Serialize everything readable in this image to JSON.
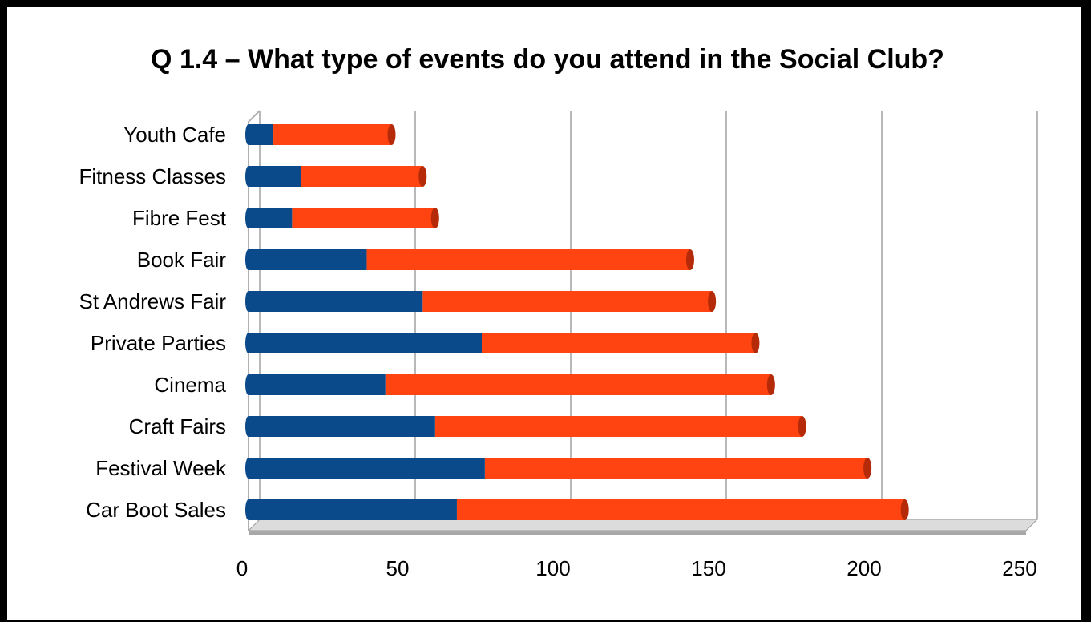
{
  "chart_data": {
    "type": "bar",
    "orientation": "horizontal",
    "stacked": true,
    "title": "Q 1.4 – What type of events do you attend in the Social Club?",
    "categories": [
      "Youth Cafe",
      "Fitness Classes",
      "Fibre Fest",
      "Book Fair",
      "St Andrews Fair",
      "Private Parties",
      "Cinema",
      "Craft Fairs",
      "Festival Week",
      "Car Boot Sales"
    ],
    "series": [
      {
        "color": "#0b4a8a",
        "values": [
          8,
          17,
          14,
          38,
          56,
          75,
          44,
          60,
          76,
          67
        ]
      },
      {
        "color": "#ff4411",
        "values": [
          38,
          39,
          46,
          104,
          93,
          88,
          124,
          118,
          123,
          144
        ]
      }
    ],
    "xlim": [
      0,
      250
    ],
    "xticks": [
      "0",
      "50",
      "100",
      "150",
      "200",
      "250"
    ],
    "grid": true,
    "legend": "none"
  }
}
